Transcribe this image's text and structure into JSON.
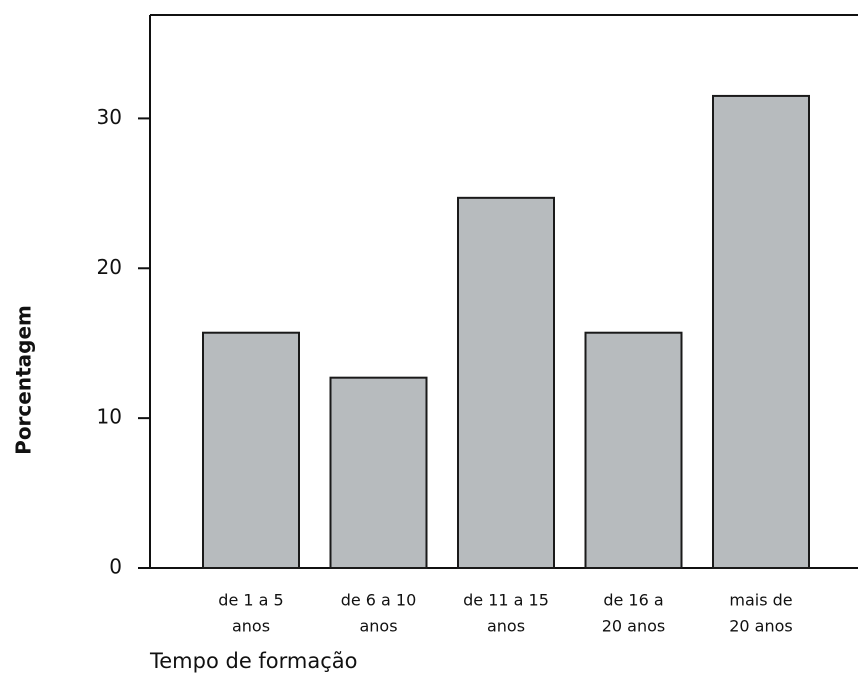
{
  "chart_data": {
    "type": "bar",
    "xlabel": "Tempo de formação",
    "ylabel": "Porcentagem",
    "categories": [
      [
        "de 1 a 5",
        "anos"
      ],
      [
        "de 6 a 10",
        "anos"
      ],
      [
        "de 11 a 15",
        "anos"
      ],
      [
        "de 16 a",
        "20 anos"
      ],
      [
        "mais de",
        "20 anos"
      ]
    ],
    "values": [
      15.7,
      12.7,
      24.7,
      15.7,
      31.5
    ],
    "color": "#b7bbbe",
    "ylim": [
      0,
      36.9
    ],
    "yticks": [
      0,
      10,
      20,
      30
    ],
    "grid": false
  }
}
